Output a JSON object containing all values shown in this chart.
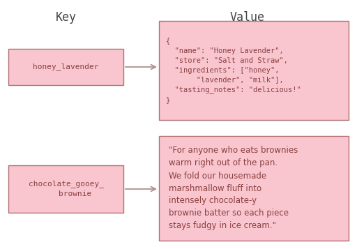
{
  "bg_color": "#ffffff",
  "box_fill": "#f9c6cf",
  "box_edge": "#b07070",
  "text_color": "#8b4040",
  "header_color": "#444444",
  "arrow_color": "#b09090",
  "header_key": "Key",
  "header_value": "Value",
  "row1_key_label": "honey_lavender",
  "row1_value_text": "{\n  \"name\": \"Honey Lavender\",\n  \"store\": \"Salt and Straw\",\n  \"ingredients\": [\"honey\",\n       \"lavender\", \"milk\"],\n  \"tasting_notes\": \"delicious!\"\n}",
  "row2_key_label": "chocolate_gooey_\n    brownie",
  "row2_value_text": "\"For anyone who eats brownies\nwarm right out of the pan.\nWe fold our housemade\nmarshmallow fluff into\nintensely chocolate-y\nbrownie batter so each piece\nstays fudgy in ice cream.\"",
  "font_mono": "monospace",
  "font_sans": "DejaVu Sans",
  "key_fontsize": 8.0,
  "value_fontsize1": 7.5,
  "value_fontsize2": 8.5,
  "header_fontsize": 12
}
